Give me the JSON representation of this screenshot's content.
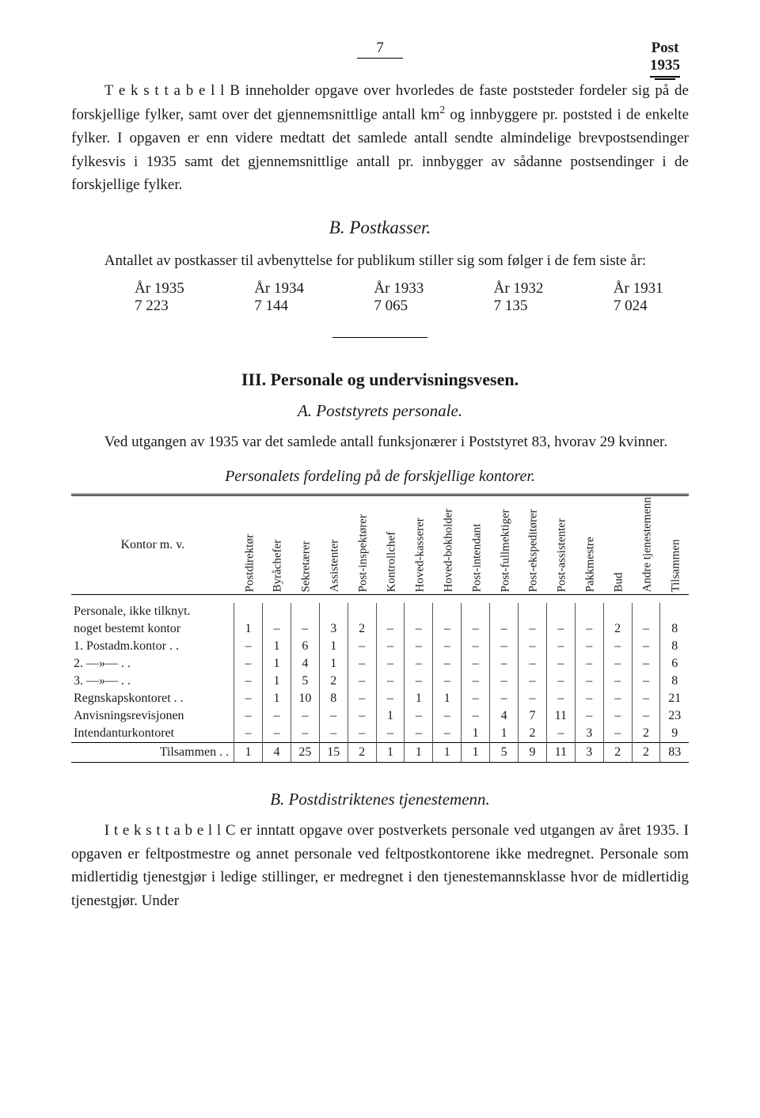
{
  "header": {
    "page_number": "7",
    "post_label": "Post",
    "year": "1935"
  },
  "paragraphs": {
    "intro_p1_a": "T e k s t t a b e l l  B inneholder opgave over hvorledes de faste poststeder fordeler sig på de forskjellige fylker, samt over det gjennemsnittlige antall km",
    "intro_p1_b": " og innbyggere pr. poststed i de enkelte fylker. I opgaven er enn videre medtatt det samlede antall sendte almindelige brevpostsendinger fylkesvis i 1935 samt det gjennemsnittlige antall pr. innbygger av sådanne postsendinger i de forskjellige fylker.",
    "postkasser_heading": "B.  Postkasser.",
    "postkasser_p": "Antallet av postkasser til avbenyttelse for publikum stiller sig som følger i de fem siste år:",
    "roman_heading": "III.  Personale og undervisningsvesen.",
    "sub_a": "A.  Poststyrets personale.",
    "para_a": "Ved utgangen av 1935 var det samlede antall funksjonærer i Poststyret 83, hvorav 29 kvinner.",
    "table_caption": "Personalets fordeling på de forskjellige kontorer.",
    "sub_b": "B.  Postdistriktenes tjenestemenn.",
    "para_b": "I  t e k s t t a b e l l  C er inntatt opgave over postverkets personale ved utgangen av året 1935. I opgaven er feltpostmestre og annet personale ved feltpostkontorene ikke medregnet. Personale som midlertidig tjenestgjør i ledige stillinger, er medregnet i den tjenestemannsklasse hvor de midlertidig tjenestgjør. Under"
  },
  "years": {
    "labels": [
      "År 1935",
      "År 1934",
      "År 1933",
      "År 1932",
      "År 1931"
    ],
    "values": [
      "7 223",
      "7 144",
      "7 065",
      "7 135",
      "7 024"
    ]
  },
  "table": {
    "row_header": "Kontor m. v.",
    "columns": [
      "Postdirektør",
      "Byråchefer",
      "Sekretærer",
      "Assistenter",
      "Post-inspektører",
      "Kontrollchef",
      "Hoved-kasserer",
      "Hoved-bokholder",
      "Post-intendant",
      "Post-fullmektiger",
      "Post-ekspeditører",
      "Post-assistenter",
      "Pakkmestre",
      "Bud",
      "Andre tjenestemenn",
      "Tilsammen"
    ],
    "rows": [
      {
        "label": "Personale, ikke tilknyt.",
        "cells": [
          "",
          "",
          "",
          "",
          "",
          "",
          "",
          "",
          "",
          "",
          "",
          "",
          "",
          "",
          "",
          ""
        ]
      },
      {
        "label": "noget bestemt kontor",
        "cells": [
          "1",
          "–",
          "–",
          "3",
          "2",
          "–",
          "–",
          "–",
          "–",
          "–",
          "–",
          "–",
          "–",
          "2",
          "–",
          "8"
        ]
      },
      {
        "label": "1. Postadm.kontor . .",
        "cells": [
          "–",
          "1",
          "6",
          "1",
          "–",
          "–",
          "–",
          "–",
          "–",
          "–",
          "–",
          "–",
          "–",
          "–",
          "–",
          "8"
        ]
      },
      {
        "label": "2.        —»—        . .",
        "cells": [
          "–",
          "1",
          "4",
          "1",
          "–",
          "–",
          "–",
          "–",
          "–",
          "–",
          "–",
          "–",
          "–",
          "–",
          "–",
          "6"
        ]
      },
      {
        "label": "3.        —»—        . .",
        "cells": [
          "–",
          "1",
          "5",
          "2",
          "–",
          "–",
          "–",
          "–",
          "–",
          "–",
          "–",
          "–",
          "–",
          "–",
          "–",
          "8"
        ]
      },
      {
        "label": "Regnskapskontoret . .",
        "cells": [
          "–",
          "1",
          "10",
          "8",
          "–",
          "–",
          "1",
          "1",
          "–",
          "–",
          "–",
          "–",
          "–",
          "–",
          "–",
          "21"
        ]
      },
      {
        "label": "Anvisningsrevisjonen",
        "cells": [
          "–",
          "–",
          "–",
          "–",
          "–",
          "1",
          "–",
          "–",
          "–",
          "4",
          "7",
          "11",
          "–",
          "–",
          "–",
          "23"
        ]
      },
      {
        "label": "Intendanturkontoret",
        "cells": [
          "–",
          "–",
          "–",
          "–",
          "–",
          "–",
          "–",
          "–",
          "1",
          "1",
          "2",
          "–",
          "3",
          "–",
          "2",
          "9"
        ]
      }
    ],
    "total": {
      "label": "Tilsammen . .",
      "cells": [
        "1",
        "4",
        "25",
        "15",
        "2",
        "1",
        "1",
        "1",
        "1",
        "5",
        "9",
        "11",
        "3",
        "2",
        "2",
        "83"
      ]
    }
  }
}
